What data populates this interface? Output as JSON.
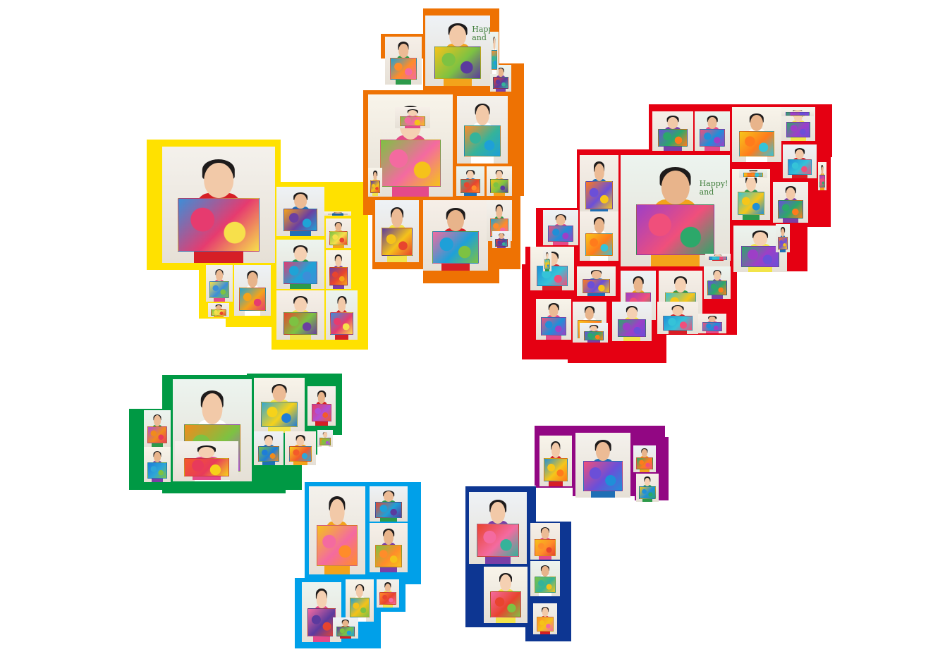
{
  "page": {
    "background": "#ffffff"
  },
  "clusters": [
    {
      "id": "yellow",
      "color": "#ffe100",
      "photo_count": 11,
      "palette": [
        "#3c8ed8",
        "#f5a31a",
        "#7dc242",
        "#e63b6f",
        "#6b3fa0",
        "#f7e04b",
        "#1fa3d6",
        "#e8442e"
      ]
    },
    {
      "id": "orange",
      "color": "#ee7203",
      "photo_count": 14,
      "printed_text": [
        "Happy!",
        "and"
      ],
      "palette": [
        "#f5c21a",
        "#1ea0d8",
        "#e8442e",
        "#7dc242",
        "#ff8c2a",
        "#5b3a9e",
        "#f46aa0",
        "#35b39a"
      ]
    },
    {
      "id": "red",
      "color": "#e50012",
      "photo_count": 29,
      "printed_text": [
        "Happy!",
        "and"
      ],
      "palette": [
        "#6b4fd8",
        "#f04f7b",
        "#f6c61a",
        "#2ca86a",
        "#1f8fd8",
        "#ff7b1c",
        "#9d3fc7",
        "#35c3d8"
      ]
    },
    {
      "id": "green",
      "color": "#009944",
      "photo_count": 9,
      "palette": [
        "#f08b1c",
        "#2ea6d8",
        "#e83a5b",
        "#7dc242",
        "#f6d21a",
        "#b04fd8",
        "#1e7dd8",
        "#f45a2a"
      ]
    },
    {
      "id": "purple",
      "color": "#920783",
      "photo_count": 4,
      "palette": [
        "#1f8fd8",
        "#f04f7b",
        "#2ca86a",
        "#f6c61a",
        "#6b4fd8",
        "#ff7b1c"
      ]
    },
    {
      "id": "blue",
      "color": "#00a0e9",
      "photo_count": 7,
      "palette": [
        "#f5c21a",
        "#e8442e",
        "#7dc242",
        "#f46aa0",
        "#1ea0d8",
        "#ff8c2a",
        "#5b3a9e"
      ]
    },
    {
      "id": "navy",
      "color": "#0d3692",
      "photo_count": 5,
      "palette": [
        "#e8442e",
        "#f5c21a",
        "#7dc242",
        "#f46aa0",
        "#ff8c2a",
        "#35b39a"
      ]
    }
  ]
}
